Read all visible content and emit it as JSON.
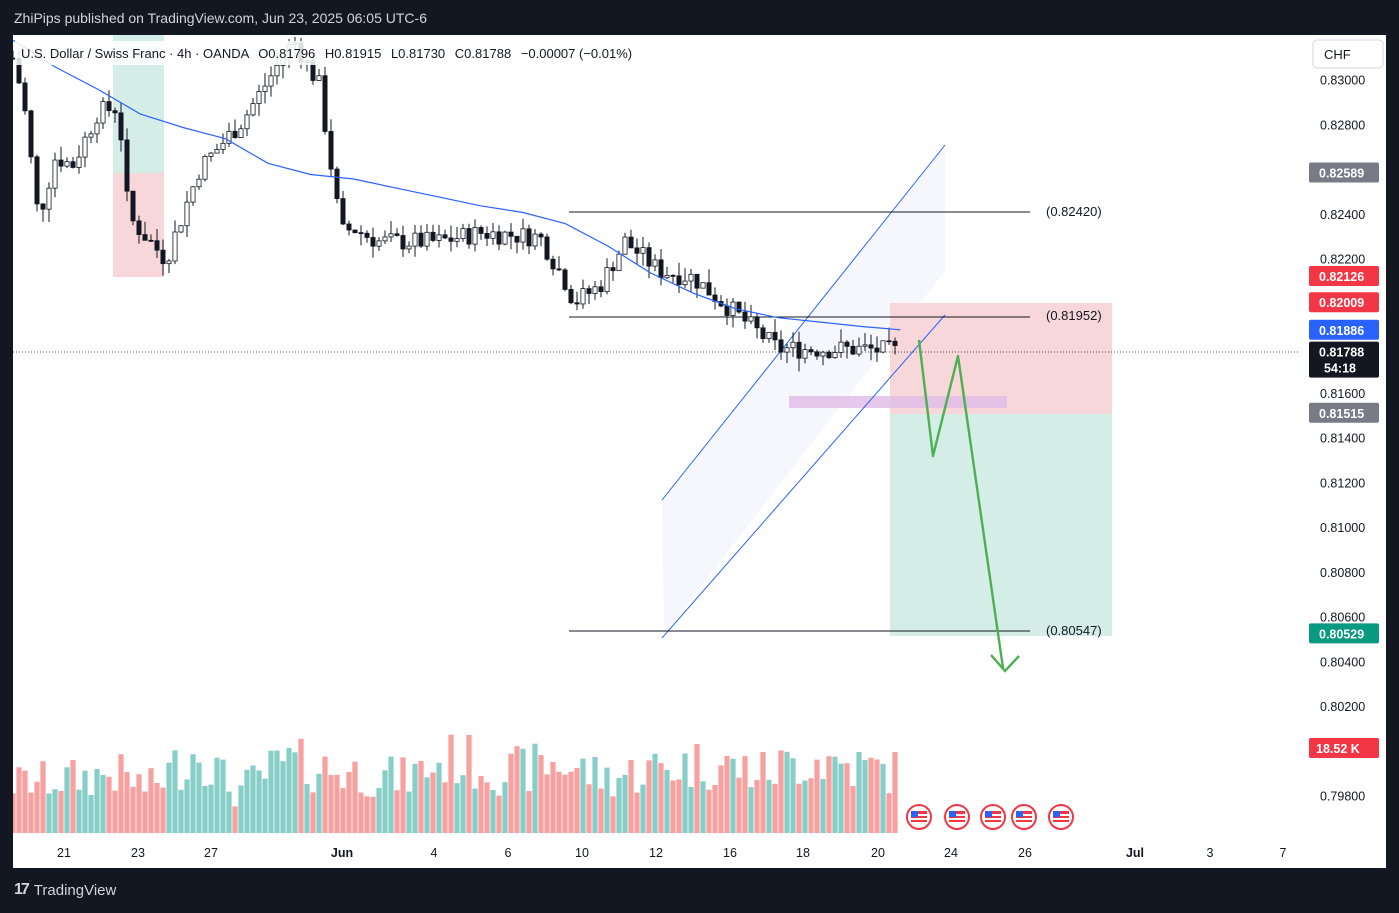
{
  "header": {
    "published": "ZhiPips published on TradingView.com, Jun 23, 2025 06:05 UTC-6"
  },
  "legend": {
    "symbol": "U.S. Dollar / Swiss Franc · 4h · OANDA",
    "open": "O0.81796",
    "high": "H0.81915",
    "low": "L0.81730",
    "close": "C0.81788",
    "change": "−0.00007 (−0.01%)"
  },
  "currency_button": "CHF",
  "footer": {
    "logo_text": "TradingView"
  },
  "colors": {
    "bull": "#26a69a",
    "bear": "#ef5350",
    "candle_body": "#131722",
    "ma": "#2962ff",
    "arrow": "#4caf50",
    "stop_zone": "#f8d7da",
    "target_zone": "#d4ede6"
  },
  "chart_data": {
    "type": "candlestick",
    "timeframe": "4h",
    "y_axis_ticks": [
      0.83,
      0.828,
      0.826,
      0.824,
      0.822,
      0.82,
      0.818,
      0.816,
      0.814,
      0.812,
      0.81,
      0.808,
      0.806,
      0.804,
      0.802,
      0.798
    ],
    "x_axis_ticks": [
      "21",
      "23",
      "27",
      "Jun",
      "4",
      "6",
      "10",
      "12",
      "16",
      "18",
      "20",
      "24",
      "26",
      "Jul",
      "3",
      "7"
    ],
    "ylim": [
      0.7966,
      0.832
    ],
    "price_labels": [
      {
        "value": "0.82589",
        "color": "#787b86"
      },
      {
        "value": "0.82126",
        "color": "#f23645"
      },
      {
        "value": "0.82009",
        "color": "#f23645"
      },
      {
        "value": "0.81886",
        "color": "#2962ff"
      },
      {
        "value": "0.81788",
        "color": "#131722",
        "countdown": "54:18"
      },
      {
        "value": "0.81515",
        "color": "#787b86"
      },
      {
        "value": "0.80529",
        "color": "#089981"
      }
    ],
    "volume_label": "18.52 K",
    "annotations": [
      {
        "label": "(0.82420)",
        "price": 0.8242
      },
      {
        "label": "(0.81952)",
        "price": 0.81952
      },
      {
        "label": "(0.80547)",
        "price": 0.80547
      }
    ],
    "position": {
      "entry": 0.81515,
      "stop": 0.82009,
      "target": 0.80529
    },
    "last_price": 0.81788,
    "ma_points": [
      [
        0,
        0.8318
      ],
      [
        25,
        0.8306
      ],
      [
        50,
        0.8296
      ],
      [
        75,
        0.8285
      ],
      [
        100,
        0.8279
      ],
      [
        125,
        0.8274
      ],
      [
        150,
        0.8263
      ],
      [
        175,
        0.8258
      ],
      [
        200,
        0.8256
      ],
      [
        225,
        0.8252
      ],
      [
        250,
        0.8248
      ],
      [
        275,
        0.8244
      ],
      [
        300,
        0.8241
      ],
      [
        325,
        0.8236
      ],
      [
        350,
        0.8226
      ],
      [
        375,
        0.8214
      ],
      [
        400,
        0.8205
      ],
      [
        425,
        0.8198
      ],
      [
        450,
        0.8194
      ],
      [
        475,
        0.8192
      ],
      [
        500,
        0.819
      ],
      [
        522,
        0.81886
      ]
    ],
    "ohlc_anchors": [
      [
        0,
        0.831
      ],
      [
        6,
        0.8292
      ],
      [
        15,
        0.8238
      ],
      [
        25,
        0.8266
      ],
      [
        35,
        0.8262
      ],
      [
        50,
        0.8286
      ],
      [
        62,
        0.8288
      ],
      [
        68,
        0.8239
      ],
      [
        90,
        0.822
      ],
      [
        110,
        0.8261
      ],
      [
        135,
        0.8282
      ],
      [
        165,
        0.8318
      ],
      [
        180,
        0.8298
      ],
      [
        193,
        0.8232
      ],
      [
        200,
        0.8234
      ],
      [
        215,
        0.8228
      ],
      [
        250,
        0.8228
      ],
      [
        275,
        0.8232
      ],
      [
        310,
        0.823
      ],
      [
        325,
        0.821
      ],
      [
        330,
        0.8201
      ],
      [
        345,
        0.8208
      ],
      [
        360,
        0.8228
      ],
      [
        380,
        0.8215
      ],
      [
        400,
        0.8212
      ],
      [
        450,
        0.818
      ],
      [
        500,
        0.818
      ],
      [
        522,
        0.81788
      ]
    ],
    "volume_anchors": [
      [
        0,
        50
      ],
      [
        40,
        55
      ],
      [
        60,
        60
      ],
      [
        80,
        45
      ],
      [
        110,
        85
      ],
      [
        130,
        40
      ],
      [
        160,
        70
      ],
      [
        200,
        60
      ],
      [
        230,
        55
      ],
      [
        260,
        75
      ],
      [
        290,
        60
      ],
      [
        320,
        70
      ],
      [
        350,
        55
      ],
      [
        380,
        65
      ],
      [
        410,
        70
      ],
      [
        440,
        60
      ],
      [
        470,
        75
      ],
      [
        500,
        65
      ],
      [
        522,
        60
      ]
    ]
  }
}
